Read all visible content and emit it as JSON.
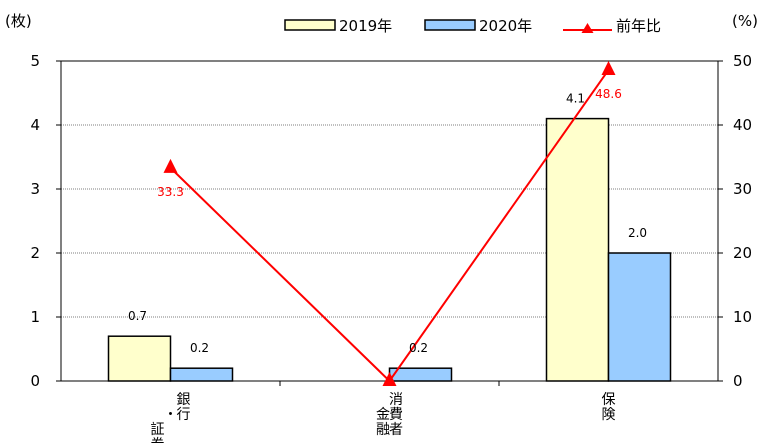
{
  "chart_data": {
    "type": "bar",
    "left_unit": "(枚)",
    "right_unit": "(%)",
    "categories": [
      {
        "lines": [
          "銀行",
          "・",
          "証券"
        ]
      },
      {
        "lines": [
          "消費者",
          "金融"
        ]
      },
      {
        "lines": [
          "保険"
        ]
      }
    ],
    "y_left": {
      "min": 0,
      "max": 5,
      "ticks": [
        "0",
        "1",
        "2",
        "3",
        "4",
        "5"
      ]
    },
    "y_right": {
      "min": 0,
      "max": 50,
      "ticks": [
        "0",
        "10",
        "20",
        "30",
        "40",
        "50"
      ]
    },
    "grid": true,
    "legend_position": "top",
    "series": [
      {
        "name": "2019年",
        "kind": "bar",
        "axis": "left",
        "color": "#ffffcc",
        "values": [
          0.7,
          0,
          4.1
        ],
        "labels": [
          "0.7",
          "",
          "4.1"
        ]
      },
      {
        "name": "2020年",
        "kind": "bar",
        "axis": "left",
        "color": "#99ccff",
        "values": [
          0.2,
          0.2,
          2.0
        ],
        "labels": [
          "0.2",
          "0.2",
          "2.0"
        ]
      },
      {
        "name": "前年比",
        "kind": "line",
        "axis": "right",
        "color": "#ff0000",
        "values": [
          33.3,
          0,
          48.6
        ],
        "labels": [
          "33.3",
          "",
          "48.6"
        ]
      }
    ]
  }
}
